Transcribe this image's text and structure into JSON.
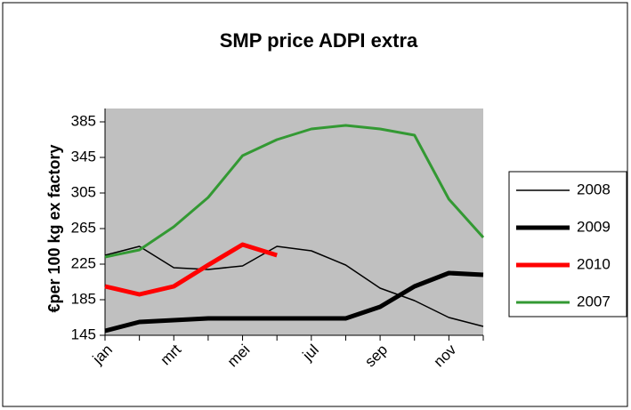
{
  "chart_data": {
    "type": "line",
    "title": "SMP price ADPI extra",
    "y_label": "€per 100 kg ex factory",
    "categories": [
      "jan",
      null,
      "mrt",
      null,
      "mei",
      null,
      "jul",
      null,
      "sep",
      null,
      "nov",
      null
    ],
    "series": [
      {
        "name": "2008",
        "color": "#000000",
        "values": [
          235,
          245,
          221,
          219,
          223,
          245,
          240,
          224,
          198,
          184,
          165,
          155
        ]
      },
      {
        "name": "2009",
        "color": "#000000",
        "values": [
          150,
          160,
          162,
          164,
          164,
          164,
          164,
          164,
          177,
          200,
          215,
          213
        ]
      },
      {
        "name": "2010",
        "color": "#ff0000",
        "values": [
          200,
          191,
          200,
          224,
          247,
          235,
          null,
          null,
          null,
          null,
          null,
          null
        ]
      },
      {
        "name": "2007",
        "color": "#339933",
        "values": [
          233,
          241,
          267,
          300,
          347,
          365,
          377,
          381,
          377,
          370,
          298,
          255
        ]
      }
    ],
    "ylim": [
      145,
      400
    ],
    "yticks": [
      145,
      185,
      225,
      265,
      305,
      345,
      385
    ],
    "grid": false,
    "legend": "right",
    "plot_background": "#c0c0c0"
  }
}
